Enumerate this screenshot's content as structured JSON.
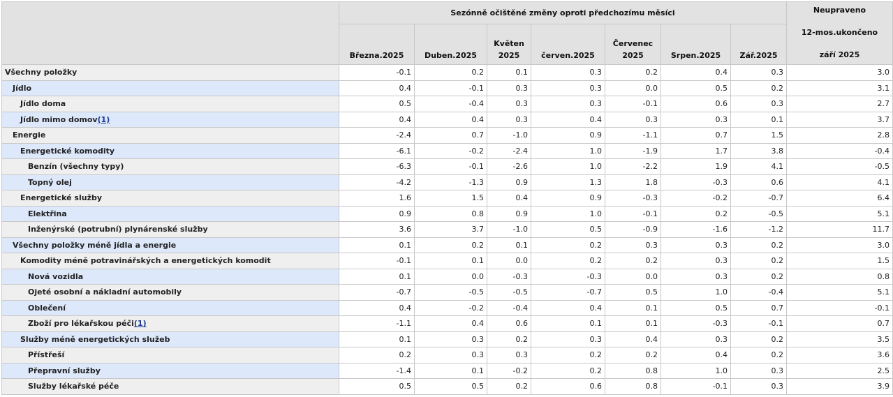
{
  "header": {
    "group_label": "Sezónně očištěné změny oproti předchozímu měsíci",
    "unadjusted": {
      "line1": "Neupraveno",
      "line2": "12-mos.ukončeno",
      "line3": "září 2025"
    },
    "months": [
      {
        "l1": "",
        "l2": "Března.2025"
      },
      {
        "l1": "",
        "l2": "Duben.2025"
      },
      {
        "l1": "Květen",
        "l2": "2025"
      },
      {
        "l1": "",
        "l2": "červen.2025"
      },
      {
        "l1": "Červenec",
        "l2": "2025"
      },
      {
        "l1": "",
        "l2": "Srpen.2025"
      },
      {
        "l1": "",
        "l2": "Zář.2025"
      }
    ]
  },
  "rows": [
    {
      "label": "Všechny položky",
      "indent": 0,
      "bg": "grey",
      "values": [
        "-0.1",
        "0.2",
        "0.1",
        "0.3",
        "0.2",
        "0.4",
        "0.3",
        "3.0"
      ]
    },
    {
      "label": "Jídlo",
      "indent": 1,
      "bg": "blue",
      "values": [
        "0.4",
        "-0.1",
        "0.3",
        "0.3",
        "0.0",
        "0.5",
        "0.2",
        "3.1"
      ]
    },
    {
      "label": "Jídlo doma",
      "indent": 2,
      "bg": "grey",
      "values": [
        "0.5",
        "-0.4",
        "0.3",
        "0.3",
        "-0.1",
        "0.6",
        "0.3",
        "2.7"
      ]
    },
    {
      "label": "Jídlo mimo domov",
      "indent": 2,
      "bg": "blue",
      "footnote": "(1)",
      "values": [
        "0.4",
        "0.4",
        "0.3",
        "0.4",
        "0.3",
        "0.3",
        "0.1",
        "3.7"
      ]
    },
    {
      "label": "Energie",
      "indent": 1,
      "bg": "grey",
      "values": [
        "-2.4",
        "0.7",
        "-1.0",
        "0.9",
        "-1.1",
        "0.7",
        "1.5",
        "2.8"
      ]
    },
    {
      "label": "Energetické komodity",
      "indent": 2,
      "bg": "blue",
      "values": [
        "-6.1",
        "-0.2",
        "-2.4",
        "1.0",
        "-1.9",
        "1.7",
        "3.8",
        "-0.4"
      ]
    },
    {
      "label": "Benzín (všechny typy)",
      "indent": 3,
      "bg": "grey",
      "values": [
        "-6.3",
        "-0.1",
        "-2.6",
        "1.0",
        "-2.2",
        "1.9",
        "4.1",
        "-0.5"
      ]
    },
    {
      "label": "Topný olej",
      "indent": 3,
      "bg": "blue",
      "values": [
        "-4.2",
        "-1.3",
        "0.9",
        "1.3",
        "1.8",
        "-0.3",
        "0.6",
        "4.1"
      ]
    },
    {
      "label": "Energetické služby",
      "indent": 2,
      "bg": "grey",
      "values": [
        "1.6",
        "1.5",
        "0.4",
        "0.9",
        "-0.3",
        "-0.2",
        "-0.7",
        "6.4"
      ]
    },
    {
      "label": "Elektřina",
      "indent": 3,
      "bg": "blue",
      "values": [
        "0.9",
        "0.8",
        "0.9",
        "1.0",
        "-0.1",
        "0.2",
        "-0.5",
        "5.1"
      ]
    },
    {
      "label": "Inženýrské (potrubní) plynárenské služby",
      "indent": 3,
      "bg": "grey",
      "values": [
        "3.6",
        "3.7",
        "-1.0",
        "0.5",
        "-0.9",
        "-1.6",
        "-1.2",
        "11.7"
      ]
    },
    {
      "label": "Všechny položky méně jídla a energie",
      "indent": 1,
      "bg": "blue",
      "values": [
        "0.1",
        "0.2",
        "0.1",
        "0.2",
        "0.3",
        "0.3",
        "0.2",
        "3.0"
      ]
    },
    {
      "label": "Komodity méně potravinářských a energetických komodit",
      "indent": 2,
      "bg": "grey",
      "values": [
        "-0.1",
        "0.1",
        "0.0",
        "0.2",
        "0.2",
        "0.3",
        "0.2",
        "1.5"
      ]
    },
    {
      "label": "Nová vozidla",
      "indent": 3,
      "bg": "blue",
      "values": [
        "0.1",
        "0.0",
        "-0.3",
        "-0.3",
        "0.0",
        "0.3",
        "0.2",
        "0.8"
      ]
    },
    {
      "label": "Ojeté osobní a nákladní automobily",
      "indent": 3,
      "bg": "grey",
      "values": [
        "-0.7",
        "-0.5",
        "-0.5",
        "-0.7",
        "0.5",
        "1.0",
        "-0.4",
        "5.1"
      ]
    },
    {
      "label": "Oblečení",
      "indent": 3,
      "bg": "blue",
      "values": [
        "0.4",
        "-0.2",
        "-0.4",
        "0.4",
        "0.1",
        "0.5",
        "0.7",
        "-0.1"
      ]
    },
    {
      "label": "Zboží pro lékařskou péči",
      "indent": 3,
      "bg": "grey",
      "footnote": "(1)",
      "values": [
        "-1.1",
        "0.4",
        "0.6",
        "0.1",
        "0.1",
        "-0.3",
        "-0.1",
        "0.7"
      ]
    },
    {
      "label": "Služby méně energetických služeb",
      "indent": 2,
      "bg": "blue",
      "values": [
        "0.1",
        "0.3",
        "0.2",
        "0.3",
        "0.4",
        "0.3",
        "0.2",
        "3.5"
      ]
    },
    {
      "label": "Přístřeší",
      "indent": 3,
      "bg": "grey",
      "values": [
        "0.2",
        "0.3",
        "0.3",
        "0.2",
        "0.2",
        "0.4",
        "0.2",
        "3.6"
      ]
    },
    {
      "label": "Přepravní služby",
      "indent": 3,
      "bg": "blue",
      "values": [
        "-1.4",
        "0.1",
        "-0.2",
        "0.2",
        "0.8",
        "1.0",
        "0.3",
        "2.5"
      ]
    },
    {
      "label": "Služby lékařské péče",
      "indent": 3,
      "bg": "grey",
      "values": [
        "0.5",
        "0.5",
        "0.2",
        "0.6",
        "0.8",
        "-0.1",
        "0.3",
        "3.9"
      ]
    }
  ]
}
